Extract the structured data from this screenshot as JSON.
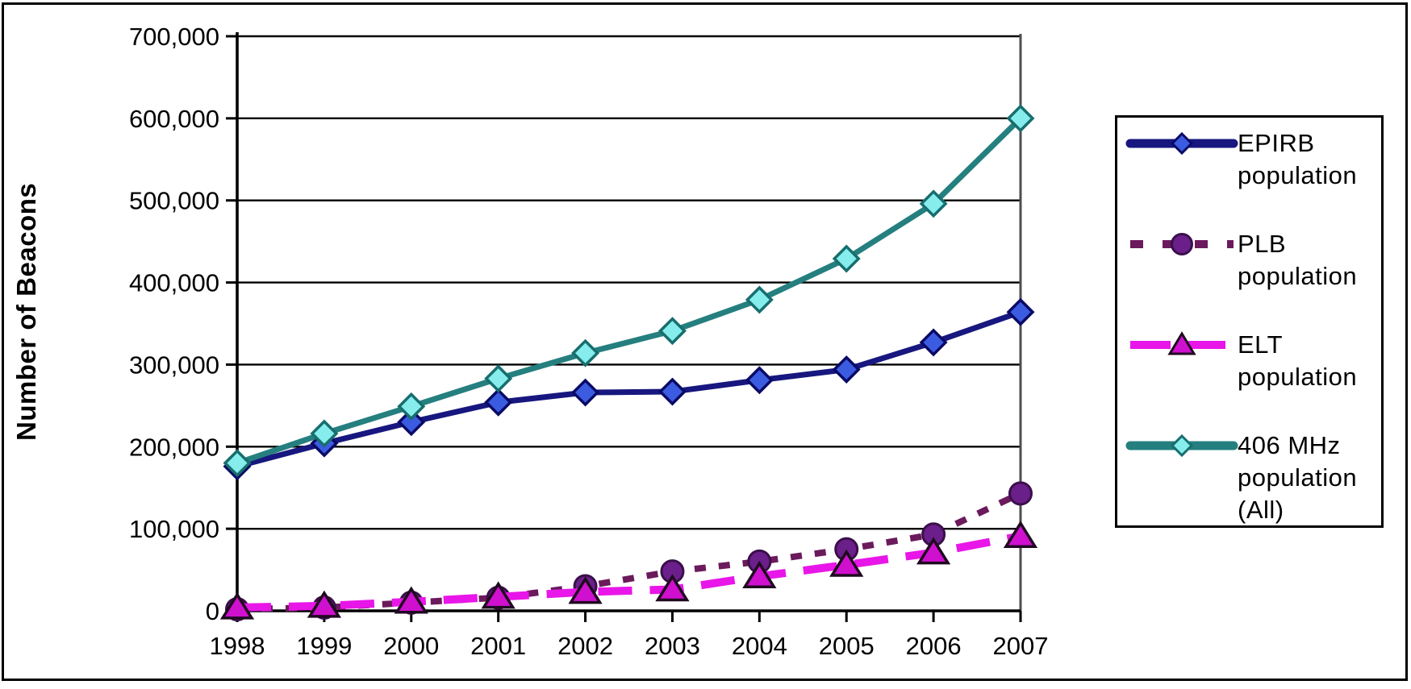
{
  "chart_data": {
    "type": "line",
    "title": "",
    "xlabel": "",
    "ylabel": "Number of Beacons",
    "categories": [
      "1998",
      "1999",
      "2000",
      "2001",
      "2002",
      "2003",
      "2004",
      "2005",
      "2006",
      "2007"
    ],
    "y_axis": {
      "min": 0,
      "max": 700000,
      "tick_interval": 100000,
      "tick_labels": [
        "0",
        "100,000",
        "200,000",
        "300,000",
        "400,000",
        "500,000",
        "600,000",
        "700,000"
      ]
    },
    "grid": true,
    "legend_position": "right",
    "axis_color": "#000000",
    "plot_right_border_color": "#4d4d4d",
    "series": [
      {
        "name": "EPIRB population",
        "legend_label": "EPIRB\npopulation",
        "line_style": "solid",
        "marker": "diamond",
        "line_color": "#17177f",
        "marker_fill": "#3b5ce0",
        "marker_stroke": "#0a0a66",
        "values": [
          176000,
          204000,
          230000,
          254000,
          266000,
          267000,
          281000,
          294000,
          327000,
          364000
        ]
      },
      {
        "name": "PLB population",
        "legend_label": "PLB\npopulation",
        "line_style": "dashed",
        "marker": "circle",
        "line_color": "#6b1a5c",
        "marker_fill": "#6b1f8a",
        "marker_stroke": "#3a0f4a",
        "values": [
          2000,
          4000,
          10000,
          16000,
          30000,
          48000,
          60000,
          75000,
          93000,
          143000
        ]
      },
      {
        "name": "ELT population",
        "legend_label": "ELT\npopulation",
        "line_style": "long-dashed",
        "marker": "triangle",
        "line_color": "#e816e8",
        "marker_fill": "#cf10cf",
        "marker_stroke": "#200a20",
        "values": [
          4000,
          6000,
          11000,
          17000,
          23000,
          26000,
          42000,
          56000,
          71000,
          91000
        ]
      },
      {
        "name": "406 MHz population (All)",
        "legend_label": "406 MHz\npopulation\n(All)",
        "line_style": "solid",
        "marker": "diamond",
        "line_color": "#257f7f",
        "marker_fill": "#86ecec",
        "marker_stroke": "#176e6e",
        "values": [
          180000,
          216000,
          249000,
          283000,
          314000,
          341000,
          379000,
          429000,
          496000,
          600000
        ]
      }
    ]
  }
}
